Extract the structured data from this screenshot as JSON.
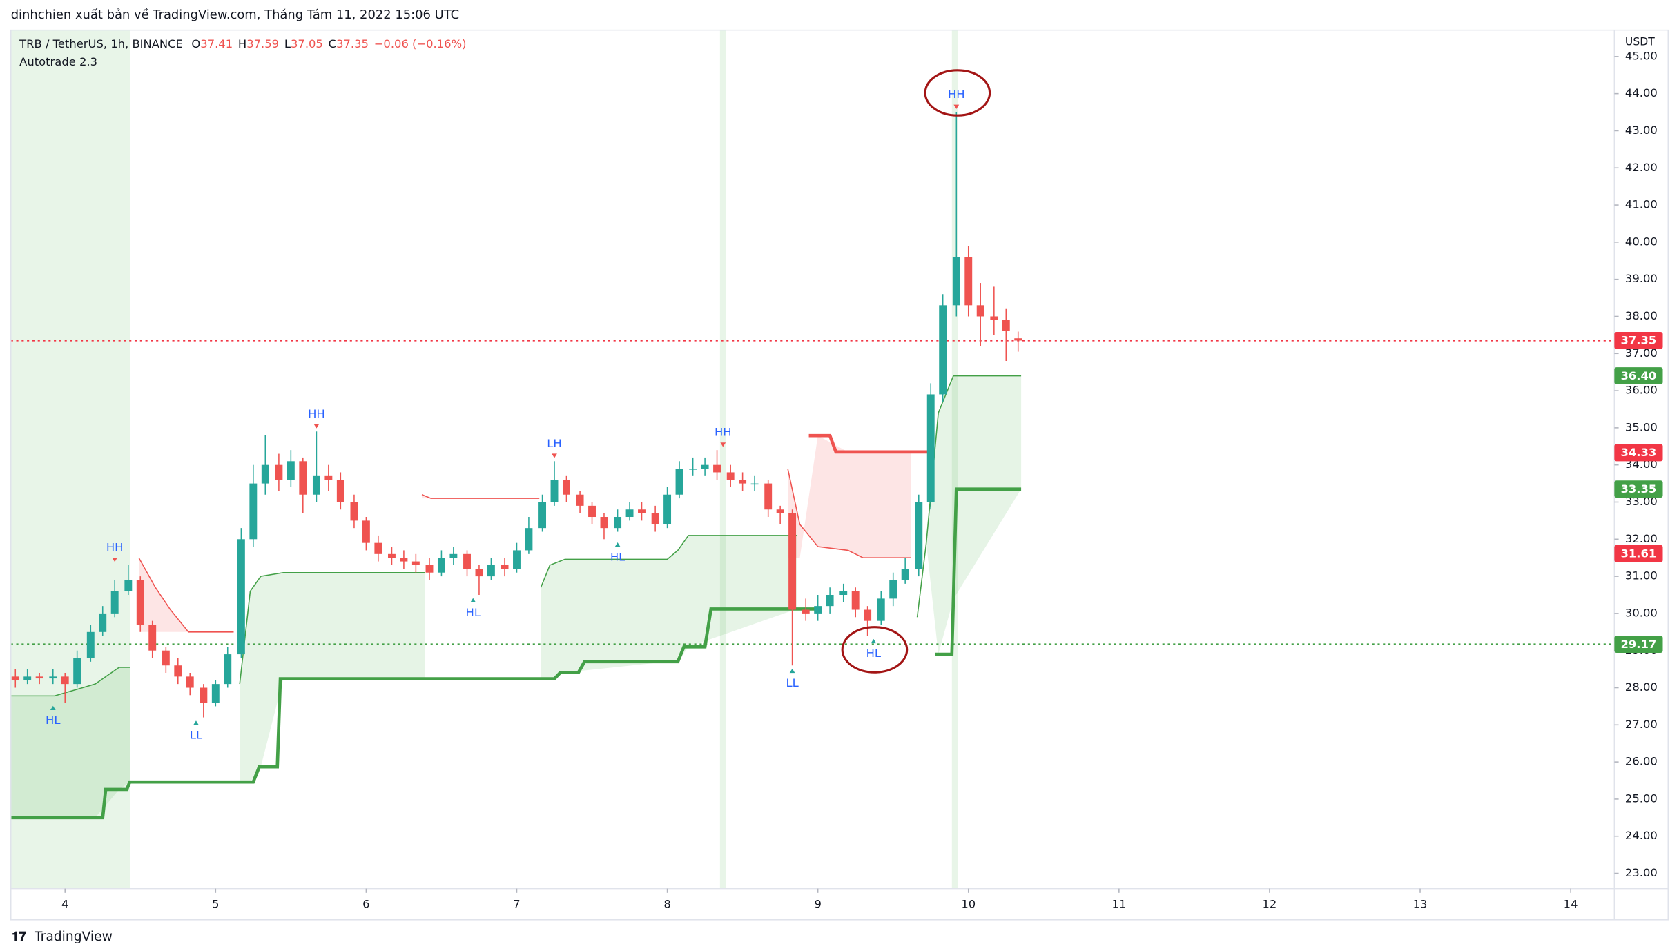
{
  "header": {
    "publisher": "dinhchien xuất bản về TradingView.com, Tháng Tám 11, 2022 15:06 UTC",
    "symbol": "TRB / TetherUS, 1h, BINANCE",
    "ohlc_labels": [
      "O",
      "H",
      "L",
      "C"
    ],
    "change": "−0.06 (−0.16%)",
    "indicator": "Autotrade 2.3",
    "logo": "TradingView"
  },
  "chart_data": {
    "type": "candlestick",
    "y_unit": "USDT",
    "up_color": "#26a69a",
    "down_color": "#ef5350",
    "x": [
      3.67,
      3.75,
      3.83,
      3.92,
      4.0,
      4.08,
      4.17,
      4.25,
      4.33,
      4.42,
      4.5,
      4.58,
      4.67,
      4.75,
      4.83,
      4.92,
      5.0,
      5.08,
      5.17,
      5.25,
      5.33,
      5.42,
      5.5,
      5.58,
      5.67,
      5.75,
      5.83,
      5.92,
      6.0,
      6.08,
      6.17,
      6.25,
      6.33,
      6.42,
      6.5,
      6.58,
      6.67,
      6.75,
      6.83,
      6.92,
      7.0,
      7.08,
      7.17,
      7.25,
      7.33,
      7.42,
      7.5,
      7.58,
      7.67,
      7.75,
      7.83,
      7.92,
      8.0,
      8.08,
      8.17,
      8.25,
      8.33,
      8.42,
      8.5,
      8.58,
      8.67,
      8.75,
      8.83,
      8.92,
      9.0,
      9.08,
      9.17,
      9.25,
      9.33,
      9.42,
      9.5,
      9.58,
      9.67,
      9.75,
      9.83,
      9.92,
      10.0,
      10.08,
      10.17,
      10.25,
      10.33
    ],
    "open": [
      28.3,
      28.2,
      28.3,
      28.25,
      28.3,
      28.1,
      28.8,
      29.5,
      30.0,
      30.6,
      30.9,
      29.7,
      29.0,
      28.6,
      28.3,
      28.0,
      27.6,
      28.1,
      28.9,
      32.0,
      33.5,
      34.0,
      33.6,
      34.1,
      33.2,
      33.7,
      33.6,
      33.0,
      32.5,
      31.9,
      31.6,
      31.5,
      31.4,
      31.3,
      31.1,
      31.5,
      31.6,
      31.2,
      31.0,
      31.3,
      31.2,
      31.7,
      32.3,
      33.0,
      33.6,
      33.2,
      32.9,
      32.6,
      32.3,
      32.6,
      32.8,
      32.7,
      32.4,
      33.2,
      33.9,
      33.9,
      34.0,
      33.8,
      33.6,
      33.5,
      33.5,
      32.8,
      32.7,
      30.1,
      30.0,
      30.2,
      30.5,
      30.6,
      30.1,
      29.8,
      30.4,
      30.9,
      31.2,
      33.0,
      35.9,
      38.3,
      39.6,
      38.3,
      38.0,
      37.9,
      37.41
    ],
    "high": [
      28.5,
      28.5,
      28.4,
      28.5,
      28.4,
      29.0,
      29.7,
      30.2,
      30.9,
      31.3,
      31.0,
      29.8,
      29.1,
      28.8,
      28.4,
      28.1,
      28.2,
      29.1,
      32.3,
      34.0,
      34.8,
      34.3,
      34.4,
      34.2,
      34.9,
      34.0,
      33.8,
      33.2,
      32.6,
      32.1,
      31.8,
      31.7,
      31.6,
      31.5,
      31.7,
      31.8,
      31.7,
      31.3,
      31.5,
      31.5,
      31.9,
      32.6,
      33.2,
      34.1,
      33.7,
      33.3,
      33.0,
      32.7,
      32.8,
      33.0,
      33.0,
      32.9,
      33.4,
      34.1,
      34.2,
      34.2,
      34.4,
      34.0,
      33.8,
      33.7,
      33.6,
      32.9,
      32.8,
      30.4,
      30.5,
      30.7,
      30.8,
      30.7,
      30.2,
      30.6,
      31.1,
      31.5,
      33.2,
      36.2,
      38.6,
      43.5,
      39.9,
      38.9,
      38.8,
      38.2,
      37.59
    ],
    "low": [
      28.0,
      28.1,
      28.1,
      28.1,
      27.6,
      28.0,
      28.7,
      29.4,
      29.9,
      30.5,
      29.5,
      28.8,
      28.4,
      28.1,
      27.8,
      27.2,
      27.5,
      28.0,
      28.8,
      31.8,
      33.2,
      33.3,
      33.4,
      32.7,
      33.0,
      33.3,
      32.8,
      32.3,
      31.7,
      31.4,
      31.3,
      31.2,
      31.1,
      30.9,
      31.0,
      31.3,
      31.0,
      30.5,
      30.9,
      31.0,
      31.1,
      31.6,
      32.2,
      32.9,
      33.0,
      32.7,
      32.4,
      32.0,
      32.2,
      32.5,
      32.5,
      32.2,
      32.3,
      33.1,
      33.7,
      33.7,
      33.6,
      33.4,
      33.3,
      33.3,
      32.6,
      32.4,
      28.6,
      29.8,
      29.8,
      30.0,
      30.3,
      29.9,
      29.4,
      29.7,
      30.2,
      30.8,
      31.0,
      32.8,
      35.7,
      38.0,
      38.0,
      37.2,
      37.5,
      36.8,
      37.05
    ],
    "close": [
      28.2,
      28.3,
      28.25,
      28.3,
      28.1,
      28.8,
      29.5,
      30.0,
      30.6,
      30.9,
      29.7,
      29.0,
      28.6,
      28.3,
      28.0,
      27.6,
      28.1,
      28.9,
      32.0,
      33.5,
      34.0,
      33.6,
      34.1,
      33.2,
      33.7,
      33.6,
      33.0,
      32.5,
      31.9,
      31.6,
      31.5,
      31.4,
      31.3,
      31.1,
      31.5,
      31.6,
      31.2,
      31.0,
      31.3,
      31.2,
      31.7,
      32.3,
      33.0,
      33.6,
      33.2,
      32.9,
      32.6,
      32.3,
      32.6,
      32.8,
      32.7,
      32.4,
      33.2,
      33.9,
      33.9,
      34.0,
      33.8,
      33.6,
      33.5,
      33.5,
      32.8,
      32.7,
      30.1,
      30.0,
      30.2,
      30.5,
      30.6,
      30.1,
      29.8,
      30.4,
      30.9,
      31.2,
      33.0,
      35.9,
      38.3,
      39.6,
      38.3,
      38.0,
      37.9,
      37.6,
      37.35
    ],
    "series": [
      {
        "color": "#43a047",
        "width": 3,
        "x": [
          3.64,
          4.25,
          4.27,
          4.41,
          4.43,
          5.25,
          5.29,
          5.41,
          5.43,
          7.25,
          7.29,
          7.41,
          7.45,
          8.07,
          8.11,
          8.25,
          8.29,
          8.99,
          null,
          9.78,
          9.89,
          9.92,
          10.35
        ],
        "values": [
          24.5,
          24.5,
          25.26,
          25.26,
          25.46,
          25.46,
          25.87,
          25.87,
          28.24,
          28.24,
          28.41,
          28.41,
          28.7,
          28.7,
          29.1,
          29.1,
          30.12,
          30.12,
          null,
          28.9,
          28.9,
          33.35,
          33.35
        ]
      },
      {
        "color": "#ef5350",
        "width": 3,
        "x": [
          8.94,
          9.08,
          9.12,
          9.73
        ],
        "values": [
          34.79,
          34.79,
          34.35,
          34.35
        ]
      },
      {
        "color": "#43a047",
        "width": 1,
        "fill": "rgba(76,175,80,0.14)",
        "x": [
          3.64,
          3.93,
          4.2,
          4.36,
          4.43,
          null,
          5.16,
          5.23,
          5.3,
          5.45,
          6.39,
          null,
          7.16,
          7.22,
          7.32,
          8.0,
          8.07,
          8.14,
          8.86,
          null,
          9.66,
          9.72,
          9.8,
          9.9,
          10.35
        ],
        "values": [
          27.78,
          27.78,
          28.1,
          28.55,
          28.55,
          null,
          28.1,
          30.6,
          31.0,
          31.1,
          31.1,
          null,
          30.7,
          31.3,
          31.46,
          31.46,
          31.7,
          32.1,
          32.1,
          null,
          29.9,
          31.9,
          35.4,
          36.4,
          36.4
        ]
      },
      {
        "color": "#ef5350",
        "width": 1,
        "fill": "rgba(239,83,80,0.15)",
        "x": [
          4.49,
          4.6,
          4.7,
          4.82,
          5.12,
          null,
          6.37,
          6.43,
          7.15,
          null,
          8.8,
          8.88,
          9.0,
          9.2,
          9.3,
          9.62
        ],
        "values": [
          31.5,
          30.7,
          30.1,
          29.5,
          29.5,
          null,
          33.2,
          33.1,
          33.1,
          null,
          33.9,
          32.4,
          31.8,
          31.7,
          31.5,
          31.5
        ]
      }
    ],
    "highlight_bands": [
      [
        3.64,
        4.43
      ],
      [
        8.35,
        8.39
      ],
      [
        9.89,
        9.93
      ]
    ],
    "highlight_color": "rgba(76,175,80,0.13)",
    "annotations": [
      {
        "text": "HH",
        "x": 4.33,
        "value": 31.3,
        "position": "above"
      },
      {
        "text": "HL",
        "x": 3.92,
        "value": 27.6,
        "position": "below"
      },
      {
        "text": "LL",
        "x": 4.87,
        "value": 27.2,
        "position": "below"
      },
      {
        "text": "HH",
        "x": 5.67,
        "value": 34.9,
        "position": "above"
      },
      {
        "text": "HL",
        "x": 6.71,
        "value": 30.5,
        "position": "below"
      },
      {
        "text": "LH",
        "x": 7.25,
        "value": 34.1,
        "position": "above"
      },
      {
        "text": "HL",
        "x": 7.67,
        "value": 32.0,
        "position": "below"
      },
      {
        "text": "HH",
        "x": 8.37,
        "value": 34.4,
        "position": "above"
      },
      {
        "text": "LL",
        "x": 8.83,
        "value": 28.6,
        "position": "below"
      },
      {
        "text": "HL",
        "x": 9.37,
        "value": 29.4,
        "position": "below",
        "circled": true
      },
      {
        "text": "HH",
        "x": 9.92,
        "value": 43.5,
        "position": "above",
        "circled": true
      }
    ],
    "price_tags": [
      {
        "value": 37.35,
        "label": "37.35",
        "color": "#f23645",
        "line": true
      },
      {
        "value": 36.4,
        "label": "36.40",
        "color": "#43a047"
      },
      {
        "value": 34.33,
        "label": "34.33",
        "color": "#f23645"
      },
      {
        "value": 33.35,
        "label": "33.35",
        "color": "#43a047"
      },
      {
        "value": 31.61,
        "label": "31.61",
        "color": "#f23645"
      },
      {
        "value": 29.17,
        "label": "29.17",
        "color": "#43a047",
        "line": true
      }
    ],
    "xlim": [
      3.64,
      14.29
    ],
    "xticks": [
      4,
      5,
      6,
      7,
      8,
      9,
      10,
      11,
      12,
      13,
      14
    ],
    "ylim": [
      22.59,
      45.71
    ],
    "yticks": [
      {
        "value": 23,
        "label": "23.00"
      },
      {
        "value": 24,
        "label": "24.00"
      },
      {
        "value": 25,
        "label": "25.00"
      },
      {
        "value": 26,
        "label": "26.00"
      },
      {
        "value": 27,
        "label": "27.00"
      },
      {
        "value": 28,
        "label": "28.00"
      },
      {
        "value": 29,
        "label": "29.00"
      },
      {
        "value": 30,
        "label": "30.00"
      },
      {
        "value": 31,
        "label": "31.00"
      },
      {
        "value": 32,
        "label": "32.00"
      },
      {
        "value": 33,
        "label": "33.00"
      },
      {
        "value": 34,
        "label": "34.00"
      },
      {
        "value": 35,
        "label": "35.00"
      },
      {
        "value": 36,
        "label": "36.00"
      },
      {
        "value": 37,
        "label": "37.00"
      },
      {
        "value": 38,
        "label": "38.00"
      },
      {
        "value": 39,
        "label": "39.00"
      },
      {
        "value": 40,
        "label": "40.00"
      },
      {
        "value": 41,
        "label": "41.00"
      },
      {
        "value": 42,
        "label": "42.00"
      },
      {
        "value": 43,
        "label": "43.00"
      },
      {
        "value": 44,
        "label": "44.00"
      },
      {
        "value": 45,
        "label": "45.00"
      }
    ]
  }
}
